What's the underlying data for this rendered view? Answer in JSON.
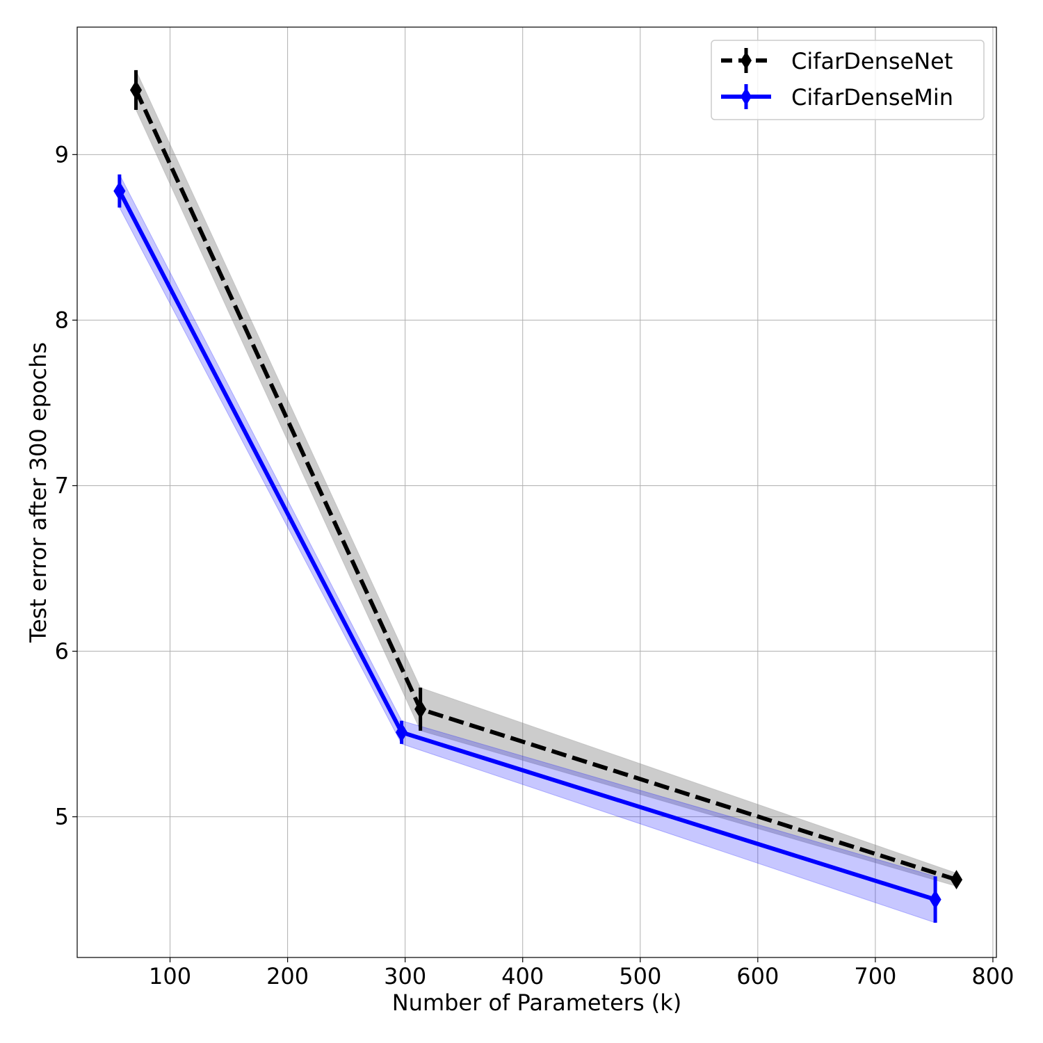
{
  "chart_data": {
    "type": "line",
    "title": "",
    "xlabel": "Number of Parameters (k)",
    "ylabel": "Test error after 300 epochs",
    "xlim": [
      21,
      803
    ],
    "ylim": [
      4.15,
      9.77
    ],
    "xticks": [
      100,
      200,
      300,
      400,
      500,
      600,
      700,
      800
    ],
    "yticks": [
      5,
      6,
      7,
      8,
      9
    ],
    "grid": true,
    "legend": "top-right",
    "series": [
      {
        "name": "CifarDenseNet",
        "color": "#000000",
        "band_color": "#7f7f7f",
        "linestyle": "dashed",
        "x": [
          71,
          313,
          769
        ],
        "y": [
          9.39,
          5.65,
          4.62
        ],
        "yerr": [
          0.12,
          0.13,
          0.04
        ]
      },
      {
        "name": "CifarDenseMin",
        "color": "#0000ff",
        "band_color": "#0000ff",
        "linestyle": "solid",
        "x": [
          57,
          297,
          751
        ],
        "y": [
          8.78,
          5.51,
          4.5
        ],
        "yerr": [
          0.1,
          0.07,
          0.14
        ]
      }
    ]
  }
}
